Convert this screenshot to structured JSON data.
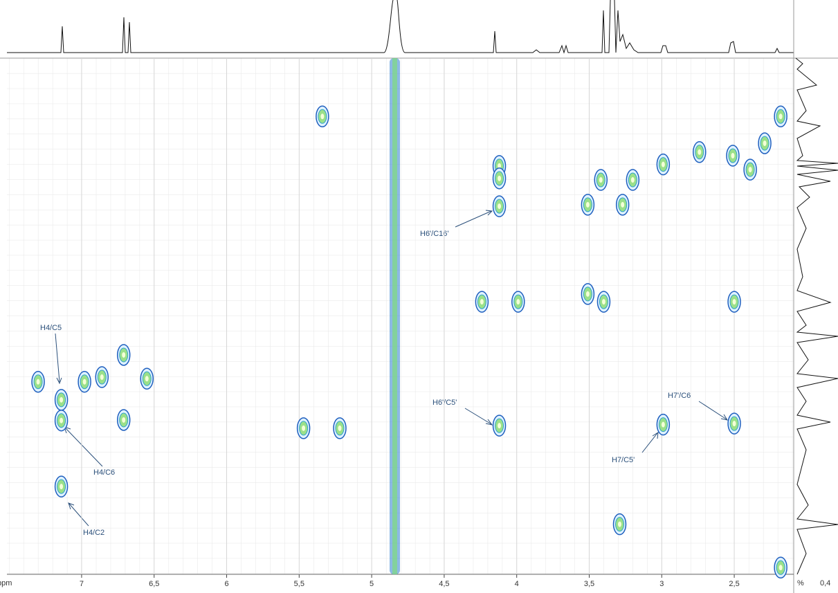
{
  "chart_data": {
    "type": "scatter",
    "x_label": "ppm",
    "right_axis_unit": "%",
    "right_axis_tick": "0,4",
    "xlim": [
      7.515,
      2.09
    ],
    "ylim": [
      0,
      100
    ],
    "xticks": [
      7,
      {
        "value": 6.5,
        "label": "6,5"
      },
      6,
      {
        "value": 5.5,
        "label": "5,5"
      },
      5,
      {
        "value": 4.5,
        "label": "4,5"
      },
      4,
      {
        "value": 3.5,
        "label": "3,5"
      },
      3,
      {
        "value": 2.5,
        "label": "2,5"
      }
    ],
    "color": "#1f5fbf",
    "x": [
      7.3,
      7.14,
      7.14,
      7.14,
      6.98,
      6.86,
      6.71,
      6.71,
      6.55,
      5.34,
      5.47,
      5.22,
      4.12,
      4.12,
      4.12,
      4.12,
      4.24,
      3.99,
      3.42,
      3.2,
      3.51,
      3.27,
      3.4,
      2.99,
      2.5,
      2.5,
      3.29,
      2.29,
      2.18,
      2.18,
      2.51,
      2.74,
      2.39,
      3.51,
      2.99
    ],
    "y": [
      62.7,
      66.2,
      70.2,
      83.0,
      62.7,
      61.8,
      57.5,
      70.1,
      62.1,
      11.3,
      71.7,
      71.7,
      20.9,
      23.3,
      28.7,
      71.2,
      47.2,
      47.2,
      23.6,
      23.6,
      28.4,
      28.4,
      47.2,
      71.0,
      47.2,
      70.8,
      90.3,
      16.5,
      11.3,
      98.7,
      18.9,
      18.2,
      21.6,
      45.7,
      20.6
    ],
    "annotations": [
      {
        "text": "H4/C5"
      },
      {
        "text": "H4/C6"
      },
      {
        "text": "H4/C2"
      },
      {
        "text": "H6'/C16'"
      },
      {
        "text": "H6'/C5'"
      },
      {
        "text": "H7/C5'"
      },
      {
        "text": "H7'/C6"
      }
    ]
  }
}
